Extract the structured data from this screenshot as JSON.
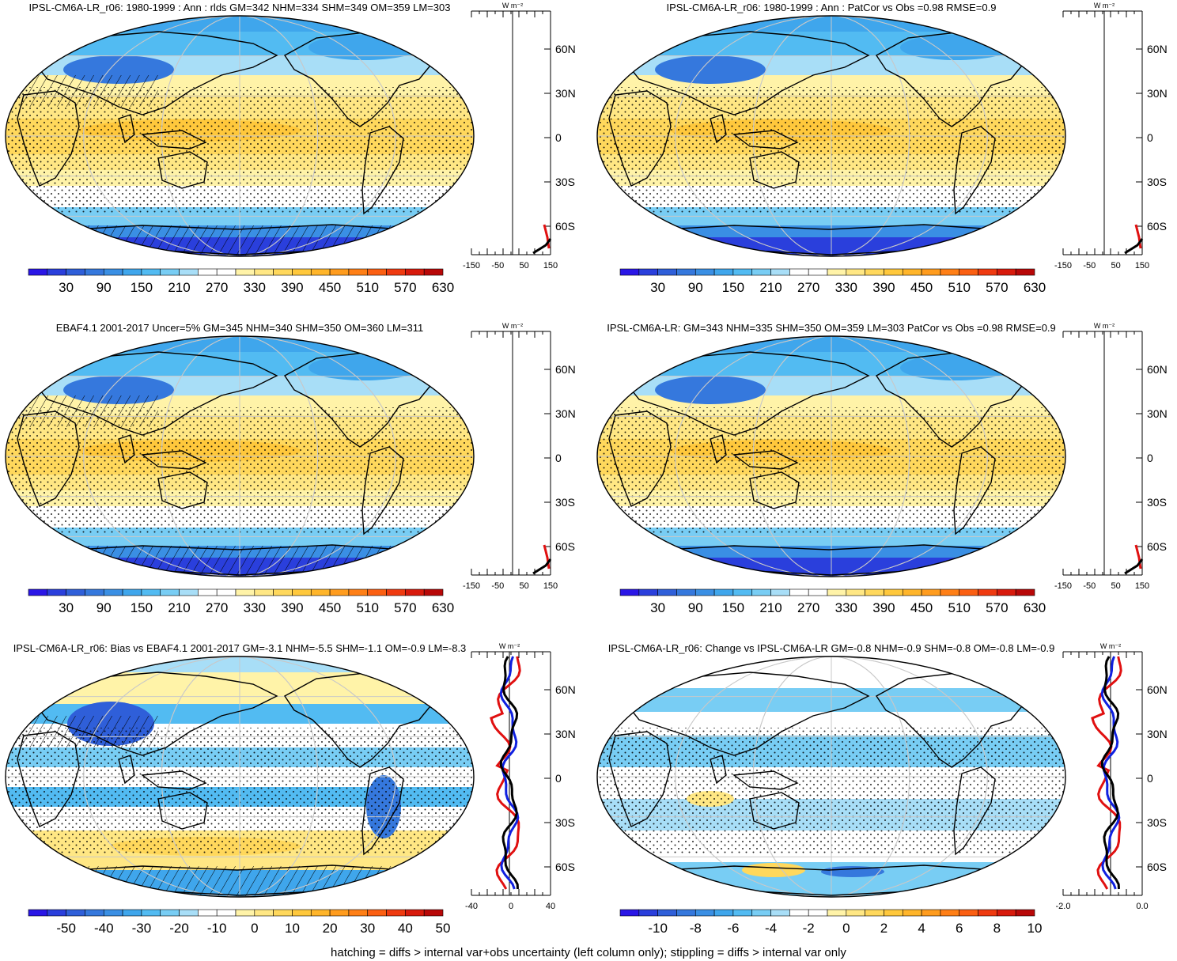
{
  "panels": [
    {
      "id": "p1",
      "title": "IPSL-CM6A-LR_r06: 1980-1999 : Ann : rlds GM=342 NHM=334 SHM=349 OM=359 LM=303",
      "colorbar": {
        "labels": [
          "30",
          "90",
          "150",
          "210",
          "270",
          "330",
          "390",
          "450",
          "510",
          "570",
          "630"
        ],
        "scale": "absolute"
      },
      "profile": {
        "unit": "W m⁻²",
        "xticks": [
          "-150",
          "-50",
          "50",
          "150"
        ],
        "yticks": [
          "60N",
          "30N",
          "0",
          "30S",
          "60S"
        ],
        "lines": [
          "red",
          "black"
        ]
      },
      "map": {
        "style": "absolute",
        "hatched": true
      }
    },
    {
      "id": "p2",
      "title": "IPSL-CM6A-LR_r06: 1980-1999 : Ann : PatCor vs Obs =0.98 RMSE=0.9",
      "colorbar": {
        "labels": [
          "30",
          "90",
          "150",
          "210",
          "270",
          "330",
          "390",
          "450",
          "510",
          "570",
          "630"
        ],
        "scale": "absolute"
      },
      "profile": {
        "unit": "W m⁻²",
        "xticks": [
          "-150",
          "-50",
          "50",
          "150"
        ],
        "yticks": [
          "60N",
          "30N",
          "0",
          "30S",
          "60S"
        ],
        "lines": [
          "red",
          "black"
        ]
      },
      "map": {
        "style": "absolute",
        "hatched": false
      }
    },
    {
      "id": "p3",
      "title": "EBAF4.1 2001-2017 Uncer=5% GM=345 NHM=340 SHM=350 OM=360 LM=311",
      "colorbar": {
        "labels": [
          "30",
          "90",
          "150",
          "210",
          "270",
          "330",
          "390",
          "450",
          "510",
          "570",
          "630"
        ],
        "scale": "absolute"
      },
      "profile": {
        "unit": "W m⁻²",
        "xticks": [
          "-150",
          "-50",
          "50",
          "150"
        ],
        "yticks": [
          "60N",
          "30N",
          "0",
          "30S",
          "60S"
        ],
        "lines": [
          "red",
          "black"
        ]
      },
      "map": {
        "style": "absolute",
        "hatched": true
      }
    },
    {
      "id": "p4",
      "title": "IPSL-CM6A-LR: GM=343 NHM=335 SHM=350 OM=359 LM=303 PatCor vs Obs =0.98 RMSE=0.9",
      "colorbar": {
        "labels": [
          "30",
          "90",
          "150",
          "210",
          "270",
          "330",
          "390",
          "450",
          "510",
          "570",
          "630"
        ],
        "scale": "absolute"
      },
      "profile": {
        "unit": "W m⁻²",
        "xticks": [
          "-150",
          "-50",
          "50",
          "150"
        ],
        "yticks": [
          "60N",
          "30N",
          "0",
          "30S",
          "60S"
        ],
        "lines": [
          "red",
          "black"
        ]
      },
      "map": {
        "style": "absolute",
        "hatched": false
      }
    },
    {
      "id": "p5",
      "title": "IPSL-CM6A-LR_r06: Bias vs EBAF4.1 2001-2017 GM=-3.1 NHM=-5.5 SHM=-1.1 OM=-0.9 LM=-8.3",
      "colorbar": {
        "labels": [
          "-50",
          "-40",
          "-30",
          "-20",
          "-10",
          "0",
          "10",
          "20",
          "30",
          "40",
          "50"
        ],
        "scale": "diff"
      },
      "profile": {
        "unit": "W m⁻²",
        "xticks": [
          "-40",
          "0",
          "40"
        ],
        "yticks": [
          "60N",
          "30N",
          "0",
          "30S",
          "60S"
        ],
        "lines": [
          "red",
          "blue",
          "black"
        ]
      },
      "map": {
        "style": "bias",
        "hatched": true
      }
    },
    {
      "id": "p6",
      "title": "IPSL-CM6A-LR_r06: Change vs IPSL-CM6A-LR GM=-0.8 NHM=-0.9 SHM=-0.8 OM=-0.8 LM=-0.9",
      "colorbar": {
        "labels": [
          "-10",
          "-8",
          "-6",
          "-4",
          "-2",
          "0",
          "2",
          "4",
          "6",
          "8",
          "10"
        ],
        "scale": "diff"
      },
      "profile": {
        "unit": "W m⁻²",
        "xticks": [
          "-2.0",
          "0.0"
        ],
        "yticks": [
          "60N",
          "30N",
          "0",
          "30S",
          "60S"
        ],
        "lines": [
          "red",
          "blue",
          "black"
        ]
      },
      "map": {
        "style": "change",
        "hatched": false
      }
    }
  ],
  "colors": {
    "absolute": [
      "#2a16e6",
      "#2a3fdc",
      "#2f5fd9",
      "#3578dd",
      "#3a8fe4",
      "#3fa6ec",
      "#52bbf2",
      "#78cdf4",
      "#a8def7",
      "#ffffff",
      "#ffffff",
      "#fff3a8",
      "#ffe784",
      "#ffd85c",
      "#ffc83c",
      "#ffb52a",
      "#ff9c1e",
      "#ff7f16",
      "#fb5f12",
      "#ef3a10",
      "#d81a0c",
      "#b80808"
    ],
    "diff": [
      "#2a16e6",
      "#2a3fdc",
      "#2f5fd9",
      "#3578dd",
      "#3a8fe4",
      "#3fa6ec",
      "#52bbf2",
      "#78cdf4",
      "#a8def7",
      "#ffffff",
      "#ffffff",
      "#fff3a8",
      "#ffe784",
      "#ffd85c",
      "#ffc83c",
      "#ffb52a",
      "#ff9c1e",
      "#ff7f16",
      "#fb5f12",
      "#ef3a10",
      "#d81a0c",
      "#b80808"
    ],
    "profile_red": "#e01010",
    "profile_blue": "#1020e0",
    "profile_black": "#000000"
  },
  "footer": "hatching = diffs > internal var+obs uncertainty (left column only); stippling = diffs > internal var only"
}
